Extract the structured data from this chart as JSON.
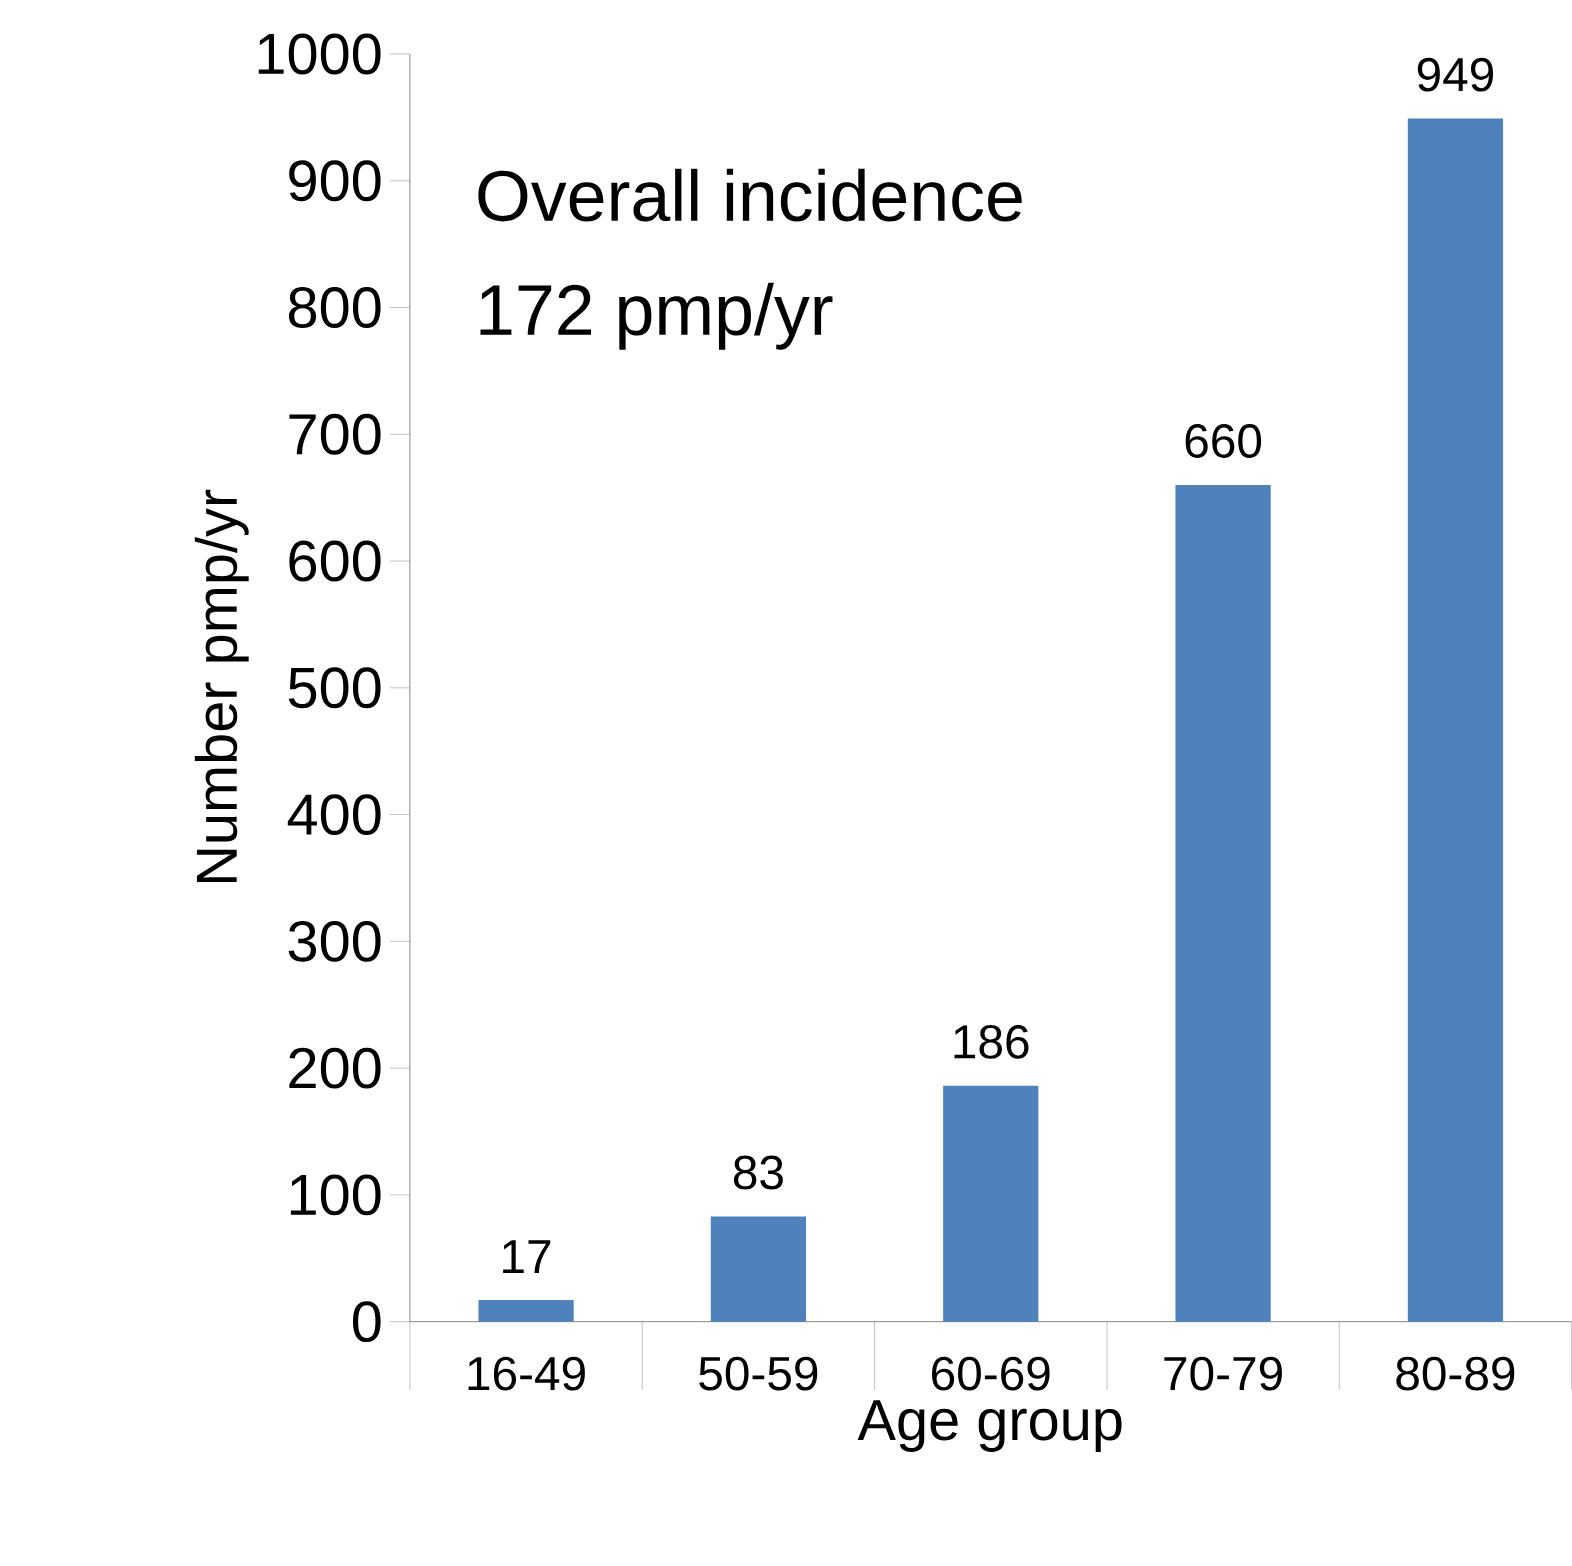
{
  "chart_data": {
    "type": "bar",
    "xlabel": "Age group",
    "ylabel": "Number pmp/yr",
    "categories": [
      "16-49",
      "50-59",
      "60-69",
      "70-79",
      "80-89"
    ],
    "values": [
      17,
      83,
      186,
      660,
      949
    ],
    "color": "#4f81bd",
    "ylim": [
      0,
      1000
    ],
    "yticks": [
      0,
      100,
      200,
      300,
      400,
      500,
      600,
      700,
      800,
      900,
      1000
    ],
    "data_labels": true,
    "annotations": [
      "Overall incidence",
      "172 pmp/yr"
    ]
  }
}
